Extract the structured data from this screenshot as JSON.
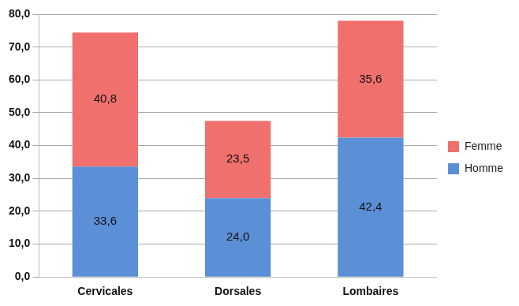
{
  "chart_data": {
    "type": "bar",
    "categories": [
      "Cervicales",
      "Dorsales",
      "Lombaires"
    ],
    "series": [
      {
        "name": "Homme",
        "color": "#5b8fd6",
        "values": [
          33.6,
          24.0,
          42.4
        ],
        "value_labels": [
          "33,6",
          "24,0",
          "42,4"
        ]
      },
      {
        "name": "Femme",
        "color": "#f0706e",
        "values": [
          40.8,
          23.5,
          35.6
        ],
        "value_labels": [
          "40,8",
          "23,5",
          "35,6"
        ]
      }
    ],
    "stacked": true,
    "data_labels": true,
    "legend": "right",
    "grid": true,
    "ylim": [
      0,
      80
    ],
    "yticks": [
      {
        "value": 0,
        "label": "0,0"
      },
      {
        "value": 10,
        "label": "10,0"
      },
      {
        "value": 20,
        "label": "20,0"
      },
      {
        "value": 30,
        "label": "30,0"
      },
      {
        "value": 40,
        "label": "40,0"
      },
      {
        "value": 50,
        "label": "50,0"
      },
      {
        "value": 60,
        "label": "60,0"
      },
      {
        "value": 70,
        "label": "70,0"
      },
      {
        "value": 80,
        "label": "80,0"
      }
    ]
  }
}
